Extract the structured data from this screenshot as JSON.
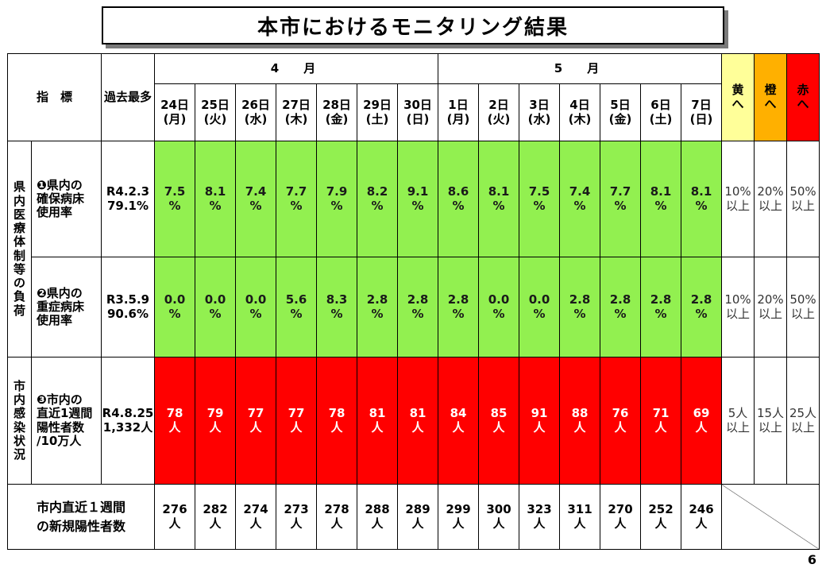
{
  "title": "本市におけるモニタリング結果",
  "page_number": "6",
  "header": {
    "indicator": "指　標",
    "past_max": [
      "過去",
      "最多"
    ],
    "months": [
      "4　月",
      "5　月"
    ],
    "dates": [
      {
        "day": "24日",
        "dow": "(月)"
      },
      {
        "day": "25日",
        "dow": "(火)"
      },
      {
        "day": "26日",
        "dow": "(水)"
      },
      {
        "day": "27日",
        "dow": "(木)"
      },
      {
        "day": "28日",
        "dow": "(金)"
      },
      {
        "day": "29日",
        "dow": "(土)"
      },
      {
        "day": "30日",
        "dow": "(日)"
      },
      {
        "day": "1日",
        "dow": "(月)"
      },
      {
        "day": "2日",
        "dow": "(火)"
      },
      {
        "day": "3日",
        "dow": "(水)"
      },
      {
        "day": "4日",
        "dow": "(木)"
      },
      {
        "day": "5日",
        "dow": "(金)"
      },
      {
        "day": "6日",
        "dow": "(土)"
      },
      {
        "day": "7日",
        "dow": "(日)"
      }
    ],
    "levels": [
      {
        "top": "黄",
        "bottom": "へ",
        "color": "#ffff99"
      },
      {
        "top": "橙",
        "bottom": "へ",
        "color": "#ffb000"
      },
      {
        "top": "赤",
        "bottom": "へ",
        "color": "#ff0000"
      }
    ]
  },
  "categories": {
    "medical": [
      "県",
      "内",
      "医",
      "療",
      "体",
      "制",
      "等",
      "の",
      "負",
      "荷"
    ],
    "infection": [
      "市",
      "内",
      "感",
      "染",
      "状",
      "況"
    ]
  },
  "rows": [
    {
      "label": [
        "❶県内の",
        "確保病床",
        "使用率"
      ],
      "max": [
        "R4.2.3",
        "79.1%"
      ],
      "color": "#92f050",
      "values": [
        "7.5",
        "8.1",
        "7.4",
        "7.7",
        "7.9",
        "8.2",
        "9.1",
        "8.6",
        "8.1",
        "7.5",
        "7.4",
        "7.7",
        "8.1",
        "8.1"
      ],
      "unit": "%",
      "thresholds": [
        [
          "10%",
          "以上"
        ],
        [
          "20%",
          "以上"
        ],
        [
          "50%",
          "以上"
        ]
      ]
    },
    {
      "label": [
        "❷県内の",
        "重症病床",
        "使用率"
      ],
      "max": [
        "R3.5.9",
        "90.6%"
      ],
      "color": "#92f050",
      "values": [
        "0.0",
        "0.0",
        "0.0",
        "5.6",
        "8.3",
        "2.8",
        "2.8",
        "2.8",
        "0.0",
        "0.0",
        "2.8",
        "2.8",
        "2.8",
        "2.8"
      ],
      "unit": "%",
      "thresholds": [
        [
          "10%",
          "以上"
        ],
        [
          "20%",
          "以上"
        ],
        [
          "50%",
          "以上"
        ]
      ]
    },
    {
      "label": [
        "❸市内の",
        "直近1週間",
        "陽性者数",
        "/10万人"
      ],
      "max": [
        "R4.8.25",
        "1,332人"
      ],
      "color": "#ff0000",
      "values": [
        "78",
        "79",
        "77",
        "77",
        "78",
        "81",
        "81",
        "84",
        "85",
        "91",
        "88",
        "76",
        "71",
        "69"
      ],
      "unit": "人",
      "thresholds": [
        [
          "5人",
          "以上"
        ],
        [
          "15人",
          "以上"
        ],
        [
          "25人",
          "以上"
        ]
      ]
    }
  ],
  "bottom_row": {
    "label": [
      "市内直近１週間",
      "の新規陽性者数"
    ],
    "values": [
      "276",
      "282",
      "274",
      "273",
      "278",
      "288",
      "289",
      "299",
      "300",
      "323",
      "311",
      "270",
      "252",
      "246"
    ],
    "unit": "人"
  }
}
